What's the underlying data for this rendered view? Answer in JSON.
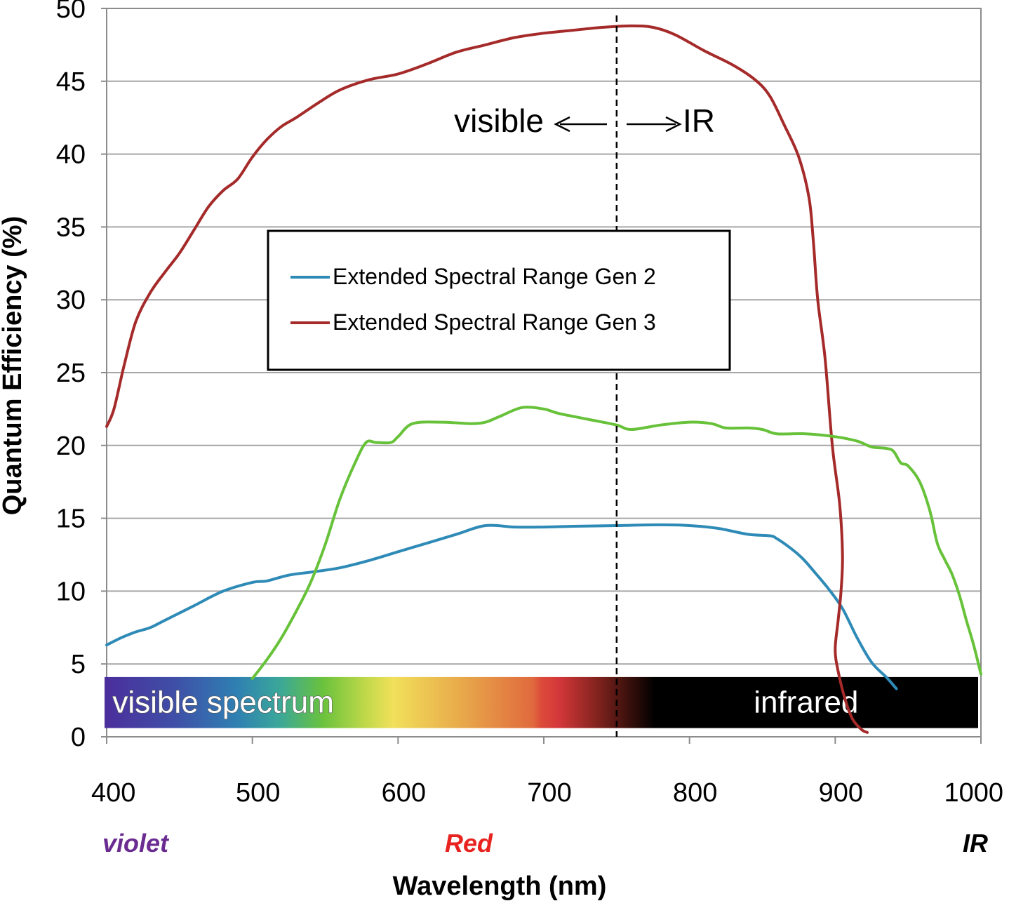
{
  "chart_data": {
    "type": "line",
    "title": "",
    "xlabel": "Wavelength (nm)",
    "ylabel": "Quantum Efficiency (%)",
    "xlim": [
      400,
      1000
    ],
    "ylim": [
      0,
      50
    ],
    "x_ticks": [
      "400",
      "500",
      "600",
      "700",
      "800",
      "900",
      "1000"
    ],
    "y_ticks": [
      "0",
      "5",
      "10",
      "15",
      "20",
      "25",
      "30",
      "35",
      "40",
      "45",
      "50"
    ],
    "grid": "horizontal",
    "legend_position": "center-left",
    "series": [
      {
        "name": "Extended Spectral Range Gen 2",
        "color": "#2e8ab6",
        "points": [
          [
            400,
            6.3
          ],
          [
            410,
            6.8
          ],
          [
            420,
            7.2
          ],
          [
            430,
            7.5
          ],
          [
            440,
            8.0
          ],
          [
            460,
            9.0
          ],
          [
            480,
            10.0
          ],
          [
            500,
            10.6
          ],
          [
            510,
            10.7
          ],
          [
            525,
            11.1
          ],
          [
            540,
            11.3
          ],
          [
            560,
            11.6
          ],
          [
            580,
            12.1
          ],
          [
            600,
            12.7
          ],
          [
            620,
            13.3
          ],
          [
            640,
            13.9
          ],
          [
            660,
            14.5
          ],
          [
            680,
            14.4
          ],
          [
            700,
            14.4
          ],
          [
            720,
            14.45
          ],
          [
            750,
            14.5
          ],
          [
            780,
            14.55
          ],
          [
            800,
            14.5
          ],
          [
            820,
            14.3
          ],
          [
            840,
            13.9
          ],
          [
            855,
            13.8
          ],
          [
            860,
            13.6
          ],
          [
            870,
            12.9
          ],
          [
            878,
            12.2
          ],
          [
            885,
            11.4
          ],
          [
            895,
            10.2
          ],
          [
            905,
            8.8
          ],
          [
            915,
            6.8
          ],
          [
            925,
            5.1
          ],
          [
            935,
            4.1
          ],
          [
            942,
            3.3
          ]
        ]
      },
      {
        "name": "Extended Spectral Range Gen 3",
        "color": "#a52a2a",
        "points": [
          [
            400,
            21.3
          ],
          [
            405,
            22.5
          ],
          [
            412,
            25.5
          ],
          [
            420,
            28.5
          ],
          [
            430,
            30.5
          ],
          [
            440,
            31.9
          ],
          [
            450,
            33.2
          ],
          [
            460,
            34.8
          ],
          [
            470,
            36.4
          ],
          [
            480,
            37.5
          ],
          [
            490,
            38.3
          ],
          [
            500,
            39.8
          ],
          [
            510,
            41.0
          ],
          [
            520,
            41.9
          ],
          [
            530,
            42.5
          ],
          [
            545,
            43.5
          ],
          [
            560,
            44.4
          ],
          [
            580,
            45.1
          ],
          [
            600,
            45.5
          ],
          [
            620,
            46.2
          ],
          [
            640,
            47.0
          ],
          [
            660,
            47.5
          ],
          [
            680,
            48.0
          ],
          [
            700,
            48.3
          ],
          [
            720,
            48.5
          ],
          [
            740,
            48.7
          ],
          [
            760,
            48.8
          ],
          [
            775,
            48.7
          ],
          [
            790,
            48.2
          ],
          [
            810,
            47.1
          ],
          [
            830,
            46.1
          ],
          [
            845,
            45.1
          ],
          [
            855,
            44.0
          ],
          [
            865,
            42.0
          ],
          [
            875,
            39.8
          ],
          [
            882,
            37.0
          ],
          [
            885,
            34.0
          ],
          [
            888,
            30.0
          ],
          [
            893,
            26.0
          ],
          [
            898,
            20.0
          ],
          [
            903,
            16.0
          ],
          [
            905,
            12.5
          ],
          [
            904,
            10.0
          ],
          [
            902,
            8.0
          ],
          [
            900,
            6.0
          ],
          [
            902,
            4.5
          ],
          [
            907,
            2.5
          ],
          [
            912,
            1.2
          ],
          [
            918,
            0.5
          ],
          [
            922,
            0.3
          ]
        ]
      },
      {
        "name": "",
        "color": "#67c23a",
        "points": [
          [
            500,
            4.0
          ],
          [
            510,
            5.3
          ],
          [
            520,
            6.8
          ],
          [
            530,
            8.6
          ],
          [
            540,
            10.6
          ],
          [
            550,
            13.2
          ],
          [
            560,
            16.3
          ],
          [
            570,
            18.7
          ],
          [
            578,
            20.2
          ],
          [
            585,
            20.2
          ],
          [
            595,
            20.2
          ],
          [
            600,
            20.6
          ],
          [
            610,
            21.5
          ],
          [
            630,
            21.6
          ],
          [
            650,
            21.5
          ],
          [
            660,
            21.6
          ],
          [
            670,
            22.0
          ],
          [
            685,
            22.6
          ],
          [
            700,
            22.5
          ],
          [
            710,
            22.2
          ],
          [
            730,
            21.8
          ],
          [
            750,
            21.4
          ],
          [
            760,
            21.1
          ],
          [
            780,
            21.4
          ],
          [
            800,
            21.6
          ],
          [
            815,
            21.5
          ],
          [
            825,
            21.2
          ],
          [
            840,
            21.2
          ],
          [
            850,
            21.1
          ],
          [
            860,
            20.8
          ],
          [
            880,
            20.8
          ],
          [
            900,
            20.6
          ],
          [
            915,
            20.3
          ],
          [
            925,
            19.9
          ],
          [
            935,
            19.8
          ],
          [
            940,
            19.6
          ],
          [
            945,
            18.8
          ],
          [
            950,
            18.6
          ],
          [
            958,
            17.5
          ],
          [
            965,
            15.5
          ],
          [
            970,
            13.3
          ],
          [
            975,
            12.2
          ],
          [
            980,
            11.2
          ],
          [
            985,
            9.8
          ],
          [
            990,
            8.0
          ],
          [
            995,
            6.3
          ],
          [
            1000,
            4.3
          ]
        ]
      }
    ],
    "annotations": {
      "divider_x": 750,
      "visible_text": "visible",
      "ir_text": "IR",
      "band_visible": "visible spectrum",
      "band_infrared": "infrared",
      "region_violet": "violet",
      "region_red": "Red",
      "region_ir": "IR"
    },
    "colors": {
      "violet_label": "#6a2c91",
      "red_label": "#e8231f",
      "ir_label": "#000000",
      "grid": "#a6a6a6"
    }
  }
}
